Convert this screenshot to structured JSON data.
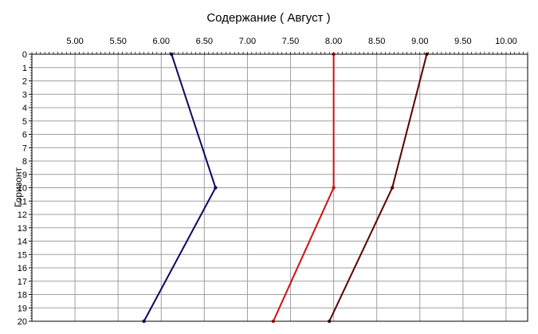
{
  "chart_data": {
    "type": "line",
    "title": "Содержание    ( Август )",
    "xlabel": "",
    "ylabel": "Горизонт",
    "xlim": [
      4.5,
      10.25
    ],
    "ylim": [
      0,
      20
    ],
    "y_inverted": true,
    "x_axis_position": "top",
    "grid": true,
    "x_ticks": [
      "5.00",
      "5.50",
      "6.00",
      "6.50",
      "7.00",
      "7.50",
      "8.00",
      "8.50",
      "9.00",
      "9.50",
      "10.00"
    ],
    "y_ticks": [
      "0",
      "1",
      "2",
      "3",
      "4",
      "5",
      "6",
      "7",
      "8",
      "9",
      "10",
      "11",
      "12",
      "13",
      "14",
      "15",
      "16",
      "17",
      "18",
      "19",
      "20"
    ],
    "series": [
      {
        "color": "#0a0a5e",
        "points": [
          [
            6.12,
            0
          ],
          [
            6.63,
            10
          ],
          [
            5.8,
            20
          ]
        ]
      },
      {
        "color": "#d01010",
        "points": [
          [
            8.0,
            0
          ],
          [
            8.0,
            10
          ],
          [
            7.3,
            20
          ]
        ]
      },
      {
        "color": "#5a0000",
        "points": [
          [
            9.08,
            0
          ],
          [
            8.68,
            10
          ],
          [
            7.95,
            20
          ]
        ]
      }
    ]
  }
}
